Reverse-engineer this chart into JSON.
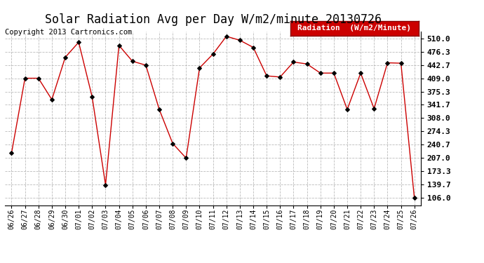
{
  "title": "Solar Radiation Avg per Day W/m2/minute 20130726",
  "copyright": "Copyright 2013 Cartronics.com",
  "legend_label": "Radiation  (W/m2/Minute)",
  "dates": [
    "06/26",
    "06/27",
    "06/28",
    "06/29",
    "06/30",
    "07/01",
    "07/02",
    "07/03",
    "07/04",
    "07/05",
    "07/06",
    "07/07",
    "07/08",
    "07/09",
    "07/10",
    "07/11",
    "07/12",
    "07/13",
    "07/14",
    "07/15",
    "07/16",
    "07/17",
    "07/18",
    "07/19",
    "07/20",
    "07/21",
    "07/22",
    "07/23",
    "07/24",
    "07/25",
    "07/26"
  ],
  "values": [
    220,
    409,
    409,
    355,
    462,
    500,
    362,
    139,
    492,
    452,
    442,
    330,
    244,
    207,
    435,
    470,
    515,
    505,
    487,
    415,
    412,
    450,
    445,
    422,
    422,
    330,
    422,
    332,
    448,
    447,
    106
  ],
  "line_color": "#cc0000",
  "marker_color": "#000000",
  "background_color": "#ffffff",
  "plot_bg_color": "#ffffff",
  "grid_color": "#aaaaaa",
  "ytick_values": [
    106.0,
    139.7,
    173.3,
    207.0,
    240.7,
    274.3,
    308.0,
    341.7,
    375.3,
    409.0,
    442.7,
    476.3,
    510.0
  ],
  "ylim": [
    88,
    527
  ],
  "title_fontsize": 12,
  "copyright_fontsize": 7.5,
  "tick_fontsize": 8,
  "legend_bg": "#cc0000",
  "legend_text_color": "#ffffff",
  "legend_fontsize": 8
}
